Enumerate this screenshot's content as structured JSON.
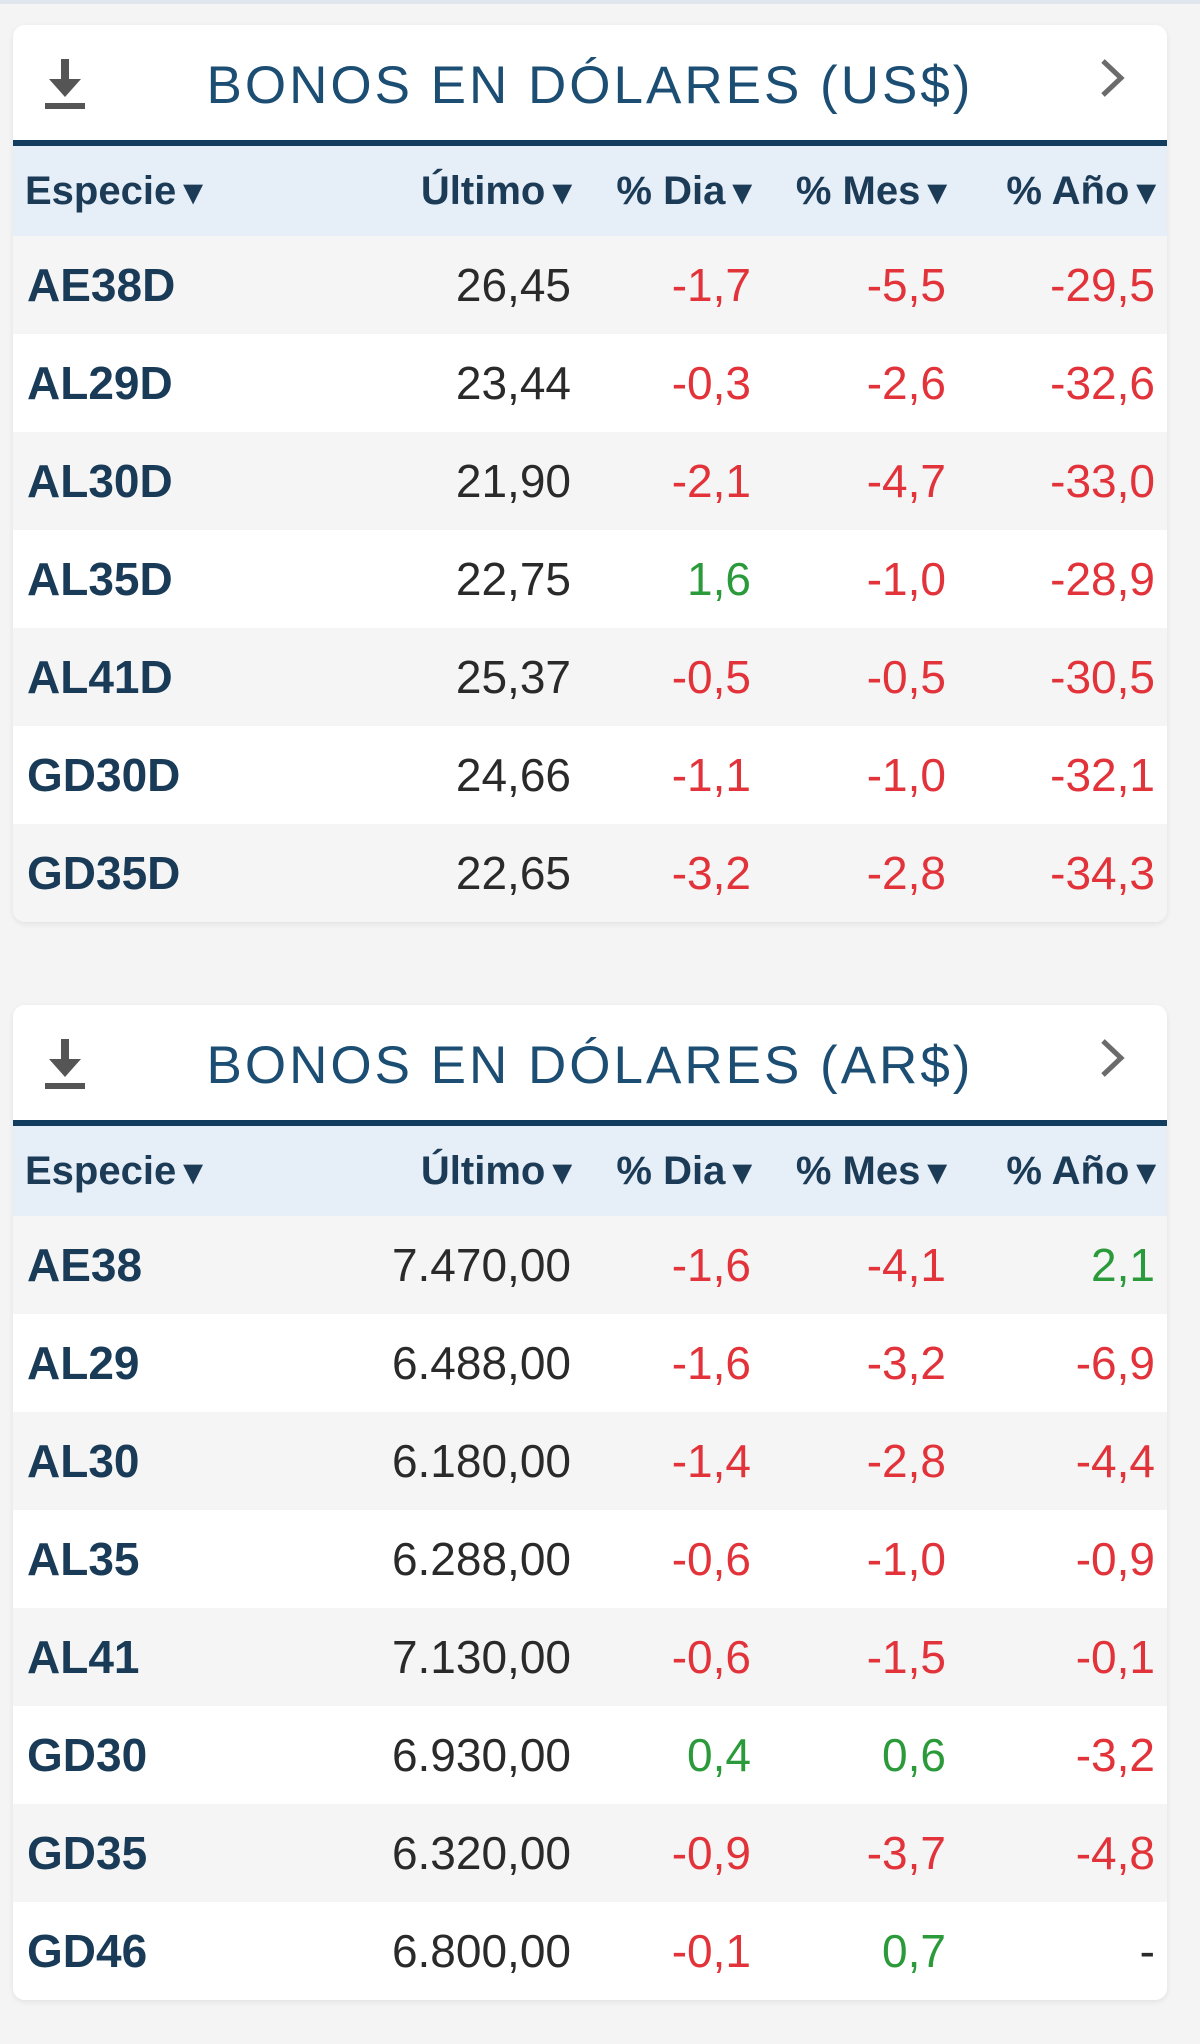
{
  "colors": {
    "title": "#1c4e73",
    "header_rule": "#133d5e",
    "header_bg": "#e6eef7",
    "negative": "#e2333a",
    "positive": "#2a9a3a"
  },
  "columns": [
    "Especie",
    "Último",
    "% Dia",
    "% Mes",
    "% Año"
  ],
  "sort_arrow": "▼",
  "icons": {
    "download": "download-icon",
    "chevron": "chevron-right-icon"
  },
  "tables": [
    {
      "title": "BONOS EN DÓLARES (US$)",
      "rows": [
        {
          "especie": "AE38D",
          "ultimo": "26,45",
          "dia": "-1,7",
          "mes": "-5,5",
          "anio": "-29,5"
        },
        {
          "especie": "AL29D",
          "ultimo": "23,44",
          "dia": "-0,3",
          "mes": "-2,6",
          "anio": "-32,6"
        },
        {
          "especie": "AL30D",
          "ultimo": "21,90",
          "dia": "-2,1",
          "mes": "-4,7",
          "anio": "-33,0"
        },
        {
          "especie": "AL35D",
          "ultimo": "22,75",
          "dia": "1,6",
          "mes": "-1,0",
          "anio": "-28,9"
        },
        {
          "especie": "AL41D",
          "ultimo": "25,37",
          "dia": "-0,5",
          "mes": "-0,5",
          "anio": "-30,5"
        },
        {
          "especie": "GD30D",
          "ultimo": "24,66",
          "dia": "-1,1",
          "mes": "-1,0",
          "anio": "-32,1"
        },
        {
          "especie": "GD35D",
          "ultimo": "22,65",
          "dia": "-3,2",
          "mes": "-2,8",
          "anio": "-34,3"
        }
      ]
    },
    {
      "title": "BONOS EN DÓLARES (AR$)",
      "rows": [
        {
          "especie": "AE38",
          "ultimo": "7.470,00",
          "dia": "-1,6",
          "mes": "-4,1",
          "anio": "2,1"
        },
        {
          "especie": "AL29",
          "ultimo": "6.488,00",
          "dia": "-1,6",
          "mes": "-3,2",
          "anio": "-6,9"
        },
        {
          "especie": "AL30",
          "ultimo": "6.180,00",
          "dia": "-1,4",
          "mes": "-2,8",
          "anio": "-4,4"
        },
        {
          "especie": "AL35",
          "ultimo": "6.288,00",
          "dia": "-0,6",
          "mes": "-1,0",
          "anio": "-0,9"
        },
        {
          "especie": "AL41",
          "ultimo": "7.130,00",
          "dia": "-0,6",
          "mes": "-1,5",
          "anio": "-0,1"
        },
        {
          "especie": "GD30",
          "ultimo": "6.930,00",
          "dia": "0,4",
          "mes": "0,6",
          "anio": "-3,2"
        },
        {
          "especie": "GD35",
          "ultimo": "6.320,00",
          "dia": "-0,9",
          "mes": "-3,7",
          "anio": "-4,8"
        },
        {
          "especie": "GD46",
          "ultimo": "6.800,00",
          "dia": "-0,1",
          "mes": "0,7",
          "anio": "-"
        }
      ]
    }
  ]
}
